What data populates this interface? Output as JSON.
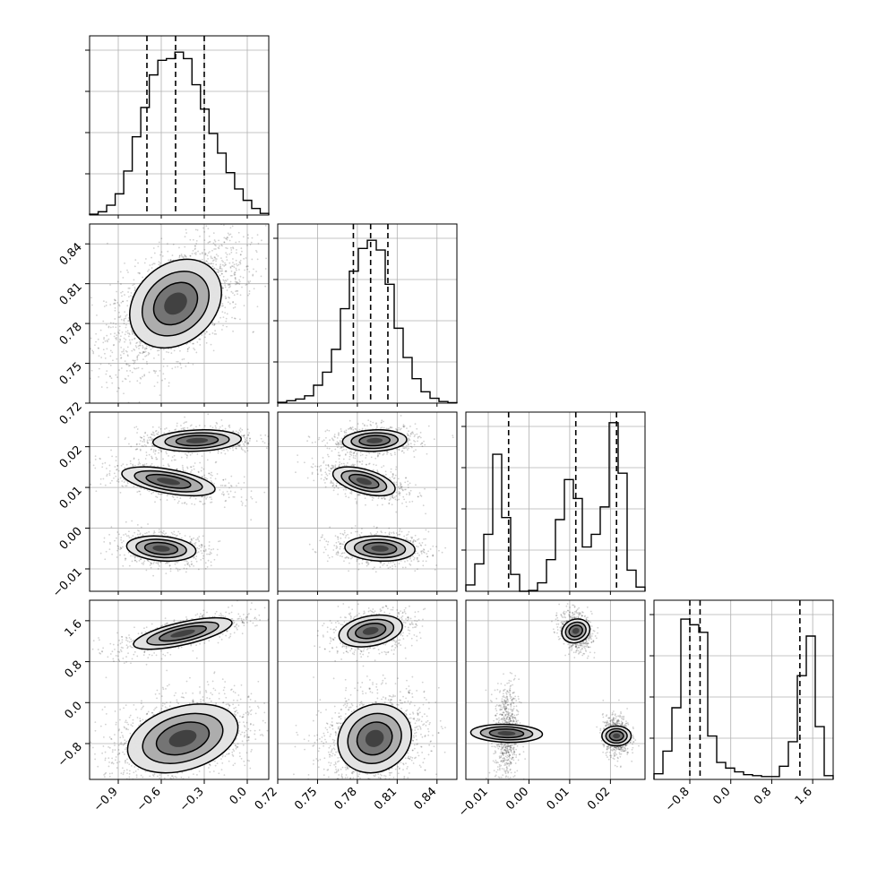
{
  "chart_data": {
    "type": "corner",
    "parameters": 4,
    "grid": true,
    "colors": {
      "line": "#000000",
      "grid": "#b0b0b0",
      "points": "#000000",
      "fill": "#000000"
    },
    "axes": [
      {
        "range": [
          -1.1,
          0.15
        ],
        "ticks": [
          -0.9,
          -0.6,
          -0.3,
          0.0
        ],
        "tick_labels": [
          "−0.9",
          "−0.6",
          "−0.3",
          "0.0"
        ]
      },
      {
        "range": [
          0.72,
          0.855
        ],
        "ticks": [
          0.72,
          0.75,
          0.78,
          0.81,
          0.84
        ],
        "tick_labels": [
          "0.72",
          "0.75",
          "0.78",
          "0.81",
          "0.84"
        ]
      },
      {
        "range": [
          -0.0155,
          0.0285
        ],
        "ticks": [
          -0.01,
          0.0,
          0.01,
          0.02
        ],
        "tick_labels": [
          "−0.01",
          "0.00",
          "0.01",
          "0.02"
        ]
      },
      {
        "range": [
          -1.5,
          2.0
        ],
        "ticks": [
          -0.8,
          0.0,
          0.8,
          1.6
        ],
        "tick_labels": [
          "−0.8",
          "0.0",
          "0.8",
          "1.6"
        ]
      }
    ],
    "histograms": [
      {
        "parameter": 0,
        "quantiles": [
          -0.7,
          -0.5,
          -0.3
        ],
        "counts": [
          0.5,
          2,
          6,
          13,
          27,
          48,
          66,
          86,
          95,
          96,
          100,
          96,
          80,
          65,
          50,
          38,
          26,
          16,
          9,
          4,
          1
        ],
        "ymax": 110
      },
      {
        "parameter": 1,
        "quantiles": [
          0.777,
          0.79,
          0.803
        ],
        "counts": [
          0.5,
          1.5,
          2.5,
          4.5,
          11,
          19,
          33,
          58,
          81,
          95,
          100,
          94,
          73,
          46,
          28,
          15,
          7,
          3,
          1,
          0.3
        ],
        "ymax": 110
      },
      {
        "parameter": 2,
        "quantiles": [
          -0.005,
          0.0115,
          0.0215
        ],
        "counts": [
          3,
          13,
          27,
          65,
          35,
          8,
          0,
          0.4,
          4,
          15,
          34,
          53,
          44,
          21,
          27,
          40,
          80,
          56,
          10,
          2
        ],
        "ymax": 85
      },
      {
        "parameter": 3,
        "quantiles": [
          -0.8,
          -0.6,
          1.35
        ],
        "counts": [
          3,
          15,
          38,
          85,
          82,
          78,
          23,
          9,
          6,
          4,
          2.5,
          2,
          1.5,
          1.5,
          7,
          20,
          55,
          76,
          28,
          2
        ],
        "ymax": 95
      }
    ],
    "density_pairs": [
      {
        "x": 0,
        "y": 1,
        "modes": [
          {
            "cx": -0.5,
            "cy": 0.795,
            "sx": 0.16,
            "sy": 0.016,
            "rho": 0.55,
            "weight": 1
          }
        ]
      },
      {
        "x": 0,
        "y": 2,
        "modes": [
          {
            "cx": -0.35,
            "cy": 0.0215,
            "sx": 0.14,
            "sy": 0.0012,
            "rho": 0.15,
            "weight": 0.34
          },
          {
            "cx": -0.55,
            "cy": 0.0115,
            "sx": 0.15,
            "sy": 0.0016,
            "rho": -0.55,
            "weight": 0.33
          },
          {
            "cx": -0.6,
            "cy": -0.005,
            "sx": 0.11,
            "sy": 0.0014,
            "rho": -0.2,
            "weight": 0.33
          }
        ]
      },
      {
        "x": 1,
        "y": 2,
        "modes": [
          {
            "cx": 0.793,
            "cy": 0.0215,
            "sx": 0.011,
            "sy": 0.0012,
            "rho": 0.1,
            "weight": 0.34
          },
          {
            "cx": 0.785,
            "cy": 0.0115,
            "sx": 0.011,
            "sy": 0.0016,
            "rho": -0.55,
            "weight": 0.33
          },
          {
            "cx": 0.797,
            "cy": -0.005,
            "sx": 0.012,
            "sy": 0.0014,
            "rho": -0.1,
            "weight": 0.33
          }
        ]
      },
      {
        "x": 0,
        "y": 3,
        "modes": [
          {
            "cx": -0.45,
            "cy": 1.35,
            "sx": 0.16,
            "sy": 0.14,
            "rho": 0.7,
            "weight": 0.33
          },
          {
            "cx": -0.45,
            "cy": -0.7,
            "sx": 0.18,
            "sy": 0.3,
            "rho": 0.35,
            "weight": 0.67
          }
        ]
      },
      {
        "x": 1,
        "y": 3,
        "modes": [
          {
            "cx": 0.79,
            "cy": 1.4,
            "sx": 0.011,
            "sy": 0.14,
            "rho": 0.3,
            "weight": 0.33
          },
          {
            "cx": 0.793,
            "cy": -0.7,
            "sx": 0.013,
            "sy": 0.3,
            "rho": 0.2,
            "weight": 0.67
          }
        ]
      },
      {
        "x": 2,
        "y": 3,
        "modes": [
          {
            "cx": 0.0115,
            "cy": 1.4,
            "sx": 0.0013,
            "sy": 0.13,
            "rho": -0.2,
            "weight": 0.33
          },
          {
            "cx": -0.0055,
            "cy": -0.6,
            "sx": 0.001,
            "sy": 0.32,
            "rho": 0.1,
            "weight": 0.34
          },
          {
            "cx": 0.0215,
            "cy": -0.65,
            "sx": 0.0011,
            "sy": 0.13,
            "rho": 0.0,
            "weight": 0.33
          }
        ]
      }
    ]
  }
}
